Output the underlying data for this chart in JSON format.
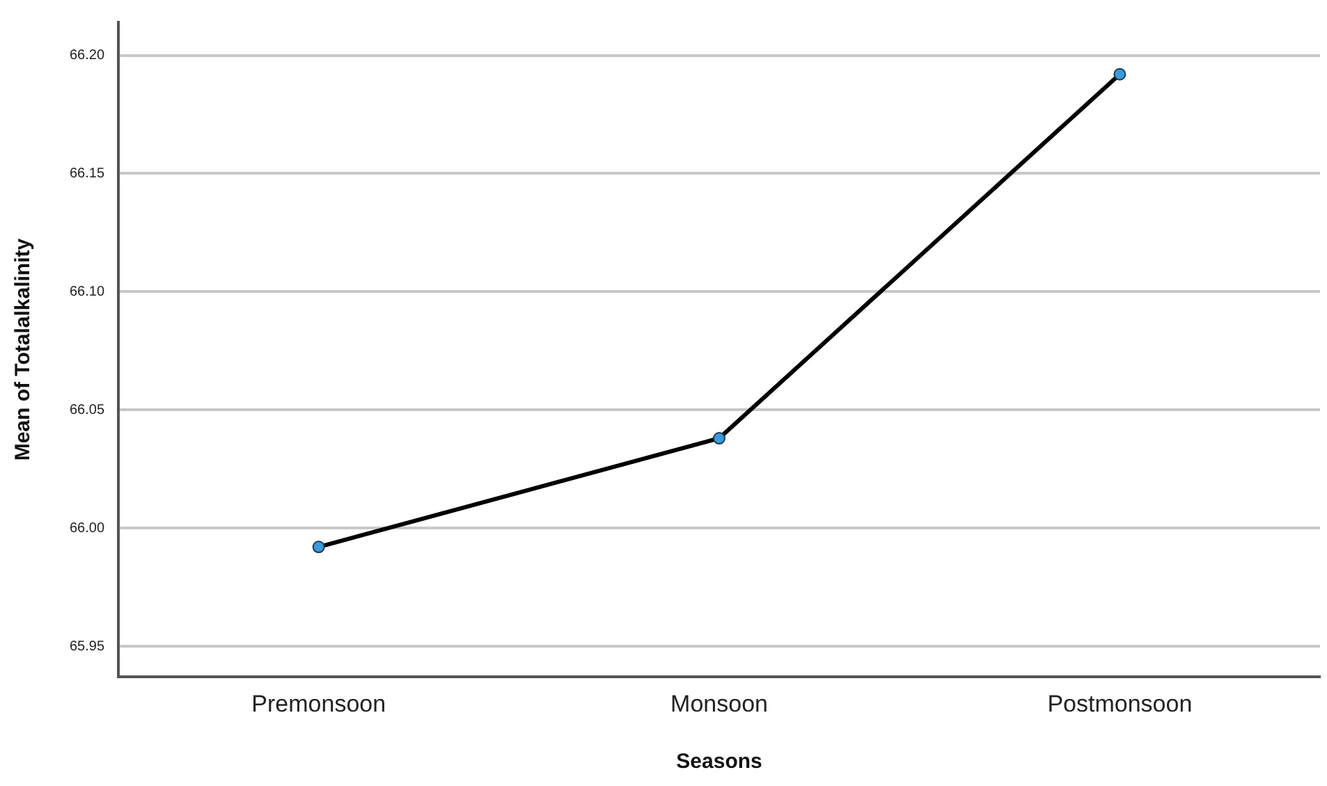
{
  "chart_data": {
    "type": "line",
    "xlabel": "Seasons",
    "ylabel": "Mean of Totalalkalinity",
    "categories": [
      "Premonsoon",
      "Monsoon",
      "Postmonsoon"
    ],
    "series": [
      {
        "color": "#000000",
        "values": [
          65.992,
          66.038,
          66.192
        ]
      }
    ],
    "ylim": [
      65.937,
      66.214
    ],
    "yticks": [
      {
        "value": 65.95,
        "label": "65.95"
      },
      {
        "value": 66.0,
        "label": "66.00"
      },
      {
        "value": 66.05,
        "label": "66.05"
      },
      {
        "value": 66.1,
        "label": "66.10"
      },
      {
        "value": 66.15,
        "label": "66.15"
      },
      {
        "value": 66.2,
        "label": "66.20"
      }
    ],
    "grid": "y",
    "legend": false,
    "marker": "circle",
    "line_style": "solid"
  }
}
